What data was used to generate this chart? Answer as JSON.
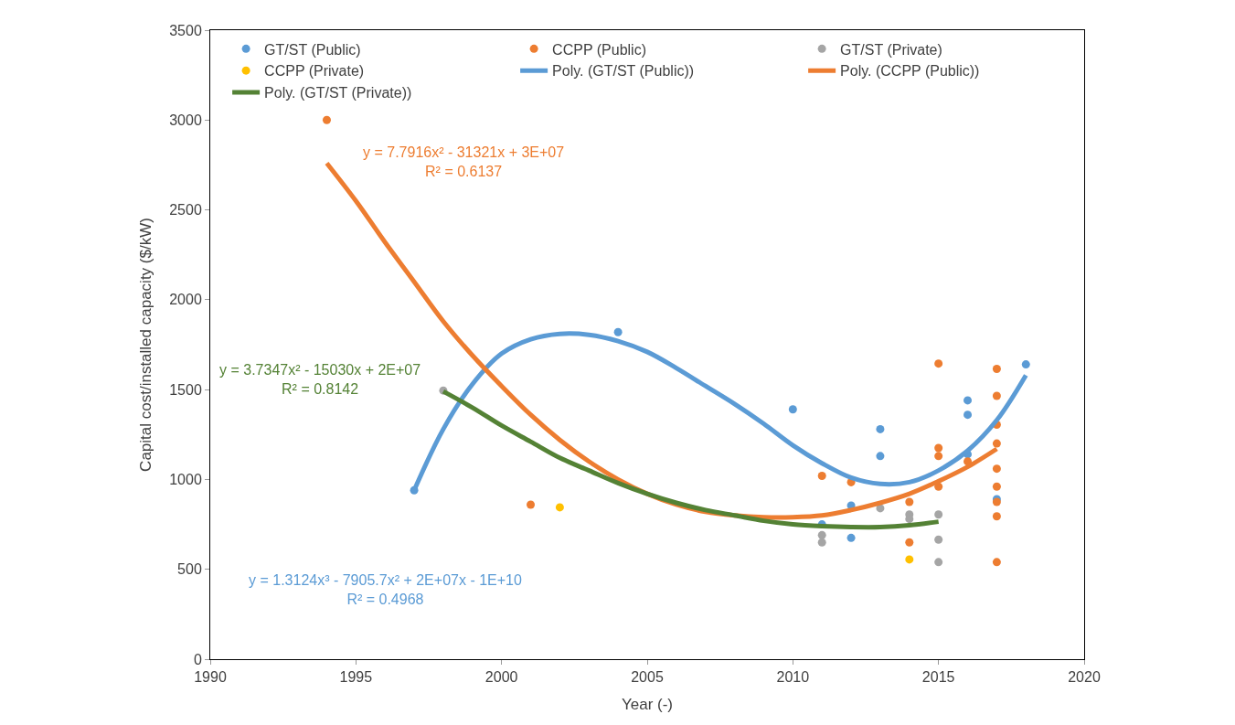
{
  "chart_data": {
    "type": "scatter",
    "xlabel": "Year (-)",
    "ylabel": "Capital cost/installed capacity ($/kW)",
    "xlim": [
      1990,
      2020
    ],
    "xticks": [
      1990,
      1995,
      2000,
      2005,
      2010,
      2015,
      2020
    ],
    "ylim": [
      0,
      3500
    ],
    "yticks": [
      0,
      500,
      1000,
      1500,
      2000,
      2500,
      3000,
      3500
    ],
    "legend": "top",
    "marker": "circle",
    "series": [
      {
        "name": "GT/ST (Public)",
        "color": "#5b9bd5",
        "x": [
          1997,
          2004,
          2010,
          2011,
          2012,
          2012,
          2013,
          2013,
          2016,
          2016,
          2016,
          2017,
          2018
        ],
        "values": [
          940,
          1820,
          1390,
          750,
          855,
          675,
          1280,
          1130,
          1440,
          1360,
          1140,
          890,
          1640
        ]
      },
      {
        "name": "CCPP (Public)",
        "color": "#ed7d31",
        "x": [
          1994,
          2001,
          2011,
          2012,
          2014,
          2014,
          2015,
          2015,
          2015,
          2015,
          2016,
          2017,
          2017,
          2017,
          2017,
          2017,
          2017,
          2017,
          2017,
          2017
        ],
        "values": [
          3000,
          860,
          1020,
          985,
          875,
          650,
          1645,
          1175,
          1130,
          960,
          1100,
          1615,
          1465,
          1305,
          1200,
          1060,
          960,
          875,
          795,
          540
        ]
      },
      {
        "name": "GT/ST (Private)",
        "color": "#a5a5a5",
        "x": [
          1998,
          2011,
          2011,
          2013,
          2014,
          2014,
          2015,
          2015,
          2015
        ],
        "values": [
          1495,
          690,
          650,
          840,
          805,
          780,
          805,
          665,
          540
        ]
      },
      {
        "name": "CCPP (Private)",
        "color": "#ffc000",
        "x": [
          2002,
          2014
        ],
        "values": [
          845,
          555
        ]
      },
      {
        "name": "Poly. (GT/ST (Public))",
        "type": "line",
        "marker": "none",
        "color": "#5b9bd5",
        "x": [
          1997,
          1998,
          1999,
          2000,
          2001,
          2002,
          2003,
          2004,
          2005,
          2006,
          2007,
          2008,
          2009,
          2010,
          2011,
          2012,
          2013,
          2014,
          2015,
          2016,
          2017,
          2018
        ],
        "values": [
          940,
          1280,
          1530,
          1700,
          1780,
          1810,
          1805,
          1770,
          1710,
          1620,
          1520,
          1420,
          1310,
          1190,
          1090,
          1010,
          975,
          985,
          1050,
          1160,
          1330,
          1580
        ]
      },
      {
        "name": "Poly. (CCPP (Public))",
        "type": "line",
        "marker": "none",
        "color": "#ed7d31",
        "x": [
          1994,
          1995,
          1996,
          1997,
          1998,
          1999,
          2000,
          2001,
          2002,
          2003,
          2004,
          2005,
          2006,
          2007,
          2008,
          2009,
          2010,
          2011,
          2012,
          2013,
          2014,
          2015,
          2016,
          2017
        ],
        "values": [
          2760,
          2550,
          2320,
          2100,
          1880,
          1690,
          1520,
          1360,
          1220,
          1100,
          1000,
          920,
          860,
          820,
          800,
          790,
          790,
          800,
          830,
          870,
          920,
          990,
          1070,
          1170
        ]
      },
      {
        "name": "Poly. (GT/ST (Private))",
        "type": "line",
        "marker": "none",
        "color": "#548235",
        "x": [
          1998,
          1999,
          2000,
          2001,
          2002,
          2003,
          2004,
          2005,
          2006,
          2007,
          2008,
          2009,
          2010,
          2011,
          2012,
          2013,
          2014,
          2015
        ],
        "values": [
          1490,
          1400,
          1300,
          1210,
          1120,
          1050,
          980,
          920,
          870,
          830,
          800,
          770,
          750,
          740,
          735,
          735,
          745,
          765
        ]
      }
    ],
    "annotations": [
      "y = 7.7916x² - 31321x + 3E+07\nR² = 0.6137",
      "y = 3.7347x² - 15030x + 2E+07\nR² = 0.8142",
      "y = 1.3124x³ - 7905.7x² + 2E+07x - 1E+10\nR² = 0.4968"
    ]
  }
}
